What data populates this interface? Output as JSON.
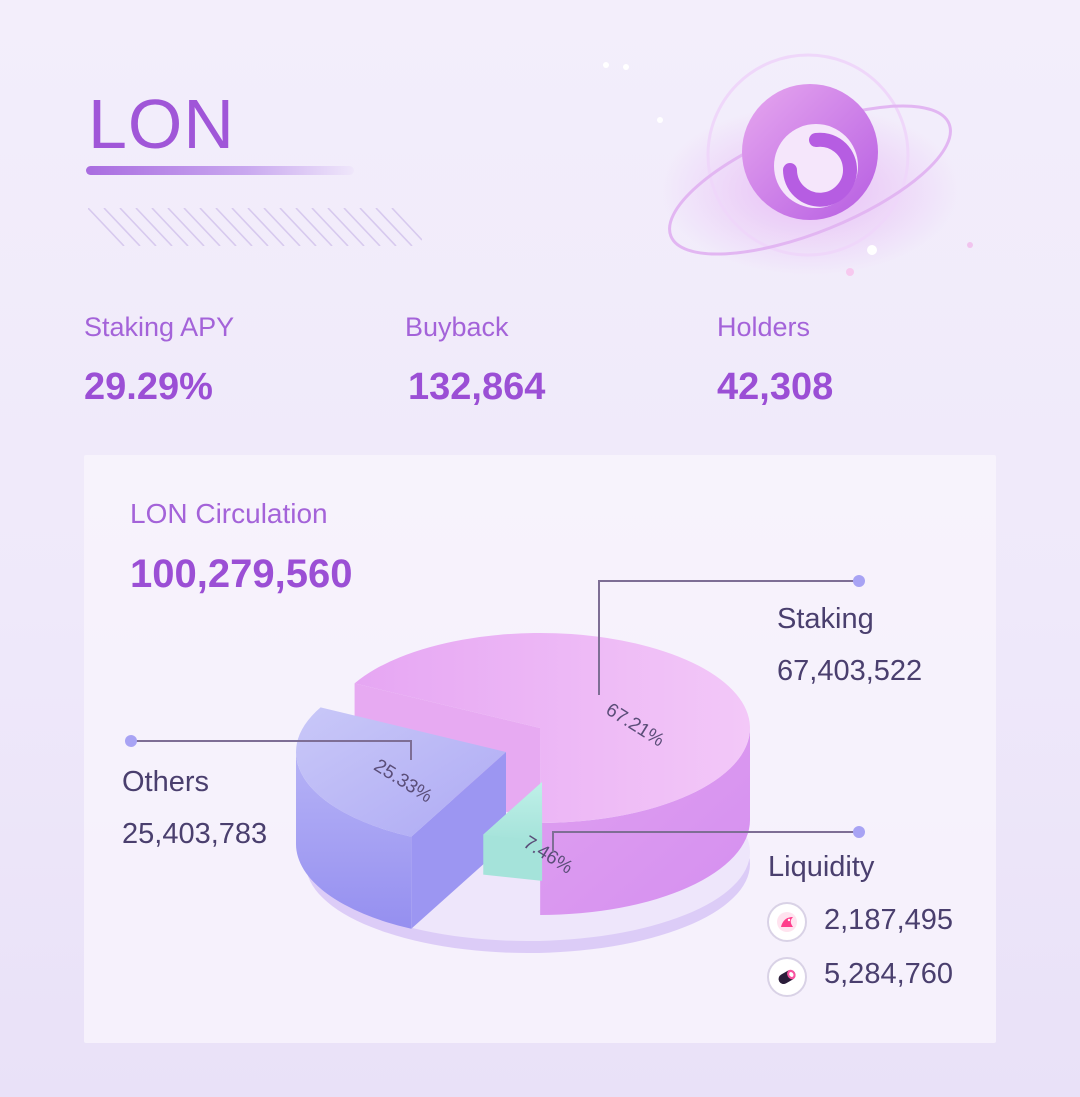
{
  "token": "LON",
  "stats": [
    {
      "label": "Staking APY",
      "value": "29.29%"
    },
    {
      "label": "Buyback",
      "value": "132,864"
    },
    {
      "label": "Holders",
      "value": "42,308"
    }
  ],
  "circulation": {
    "label": "LON Circulation",
    "value": "100,279,560"
  },
  "colors": {
    "accent": "#9b4fd5",
    "staking": "#e9a6f3",
    "others": "#a8a3f4",
    "liquidity": "#ade7dd",
    "text_dark": "#4a3f6e"
  },
  "chart_data": {
    "type": "pie",
    "title": "LON Circulation",
    "total": 100279560,
    "slices": [
      {
        "name": "Staking",
        "value": 67403522,
        "percent": 67.21,
        "percent_label": "67.21%",
        "value_label": "67,403,522"
      },
      {
        "name": "Others",
        "value": 25403783,
        "percent": 25.33,
        "percent_label": "25.33%",
        "value_label": "25,403,783"
      },
      {
        "name": "Liquidity",
        "value": 7472255,
        "percent": 7.46,
        "percent_label": "7.46%",
        "breakdown": [
          {
            "icon": "uniswap-unicorn-icon",
            "value": 2187495,
            "value_label": "2,187,495"
          },
          {
            "icon": "sushiswap-sushi-icon",
            "value": 5284760,
            "value_label": "5,284,760"
          }
        ]
      }
    ]
  }
}
